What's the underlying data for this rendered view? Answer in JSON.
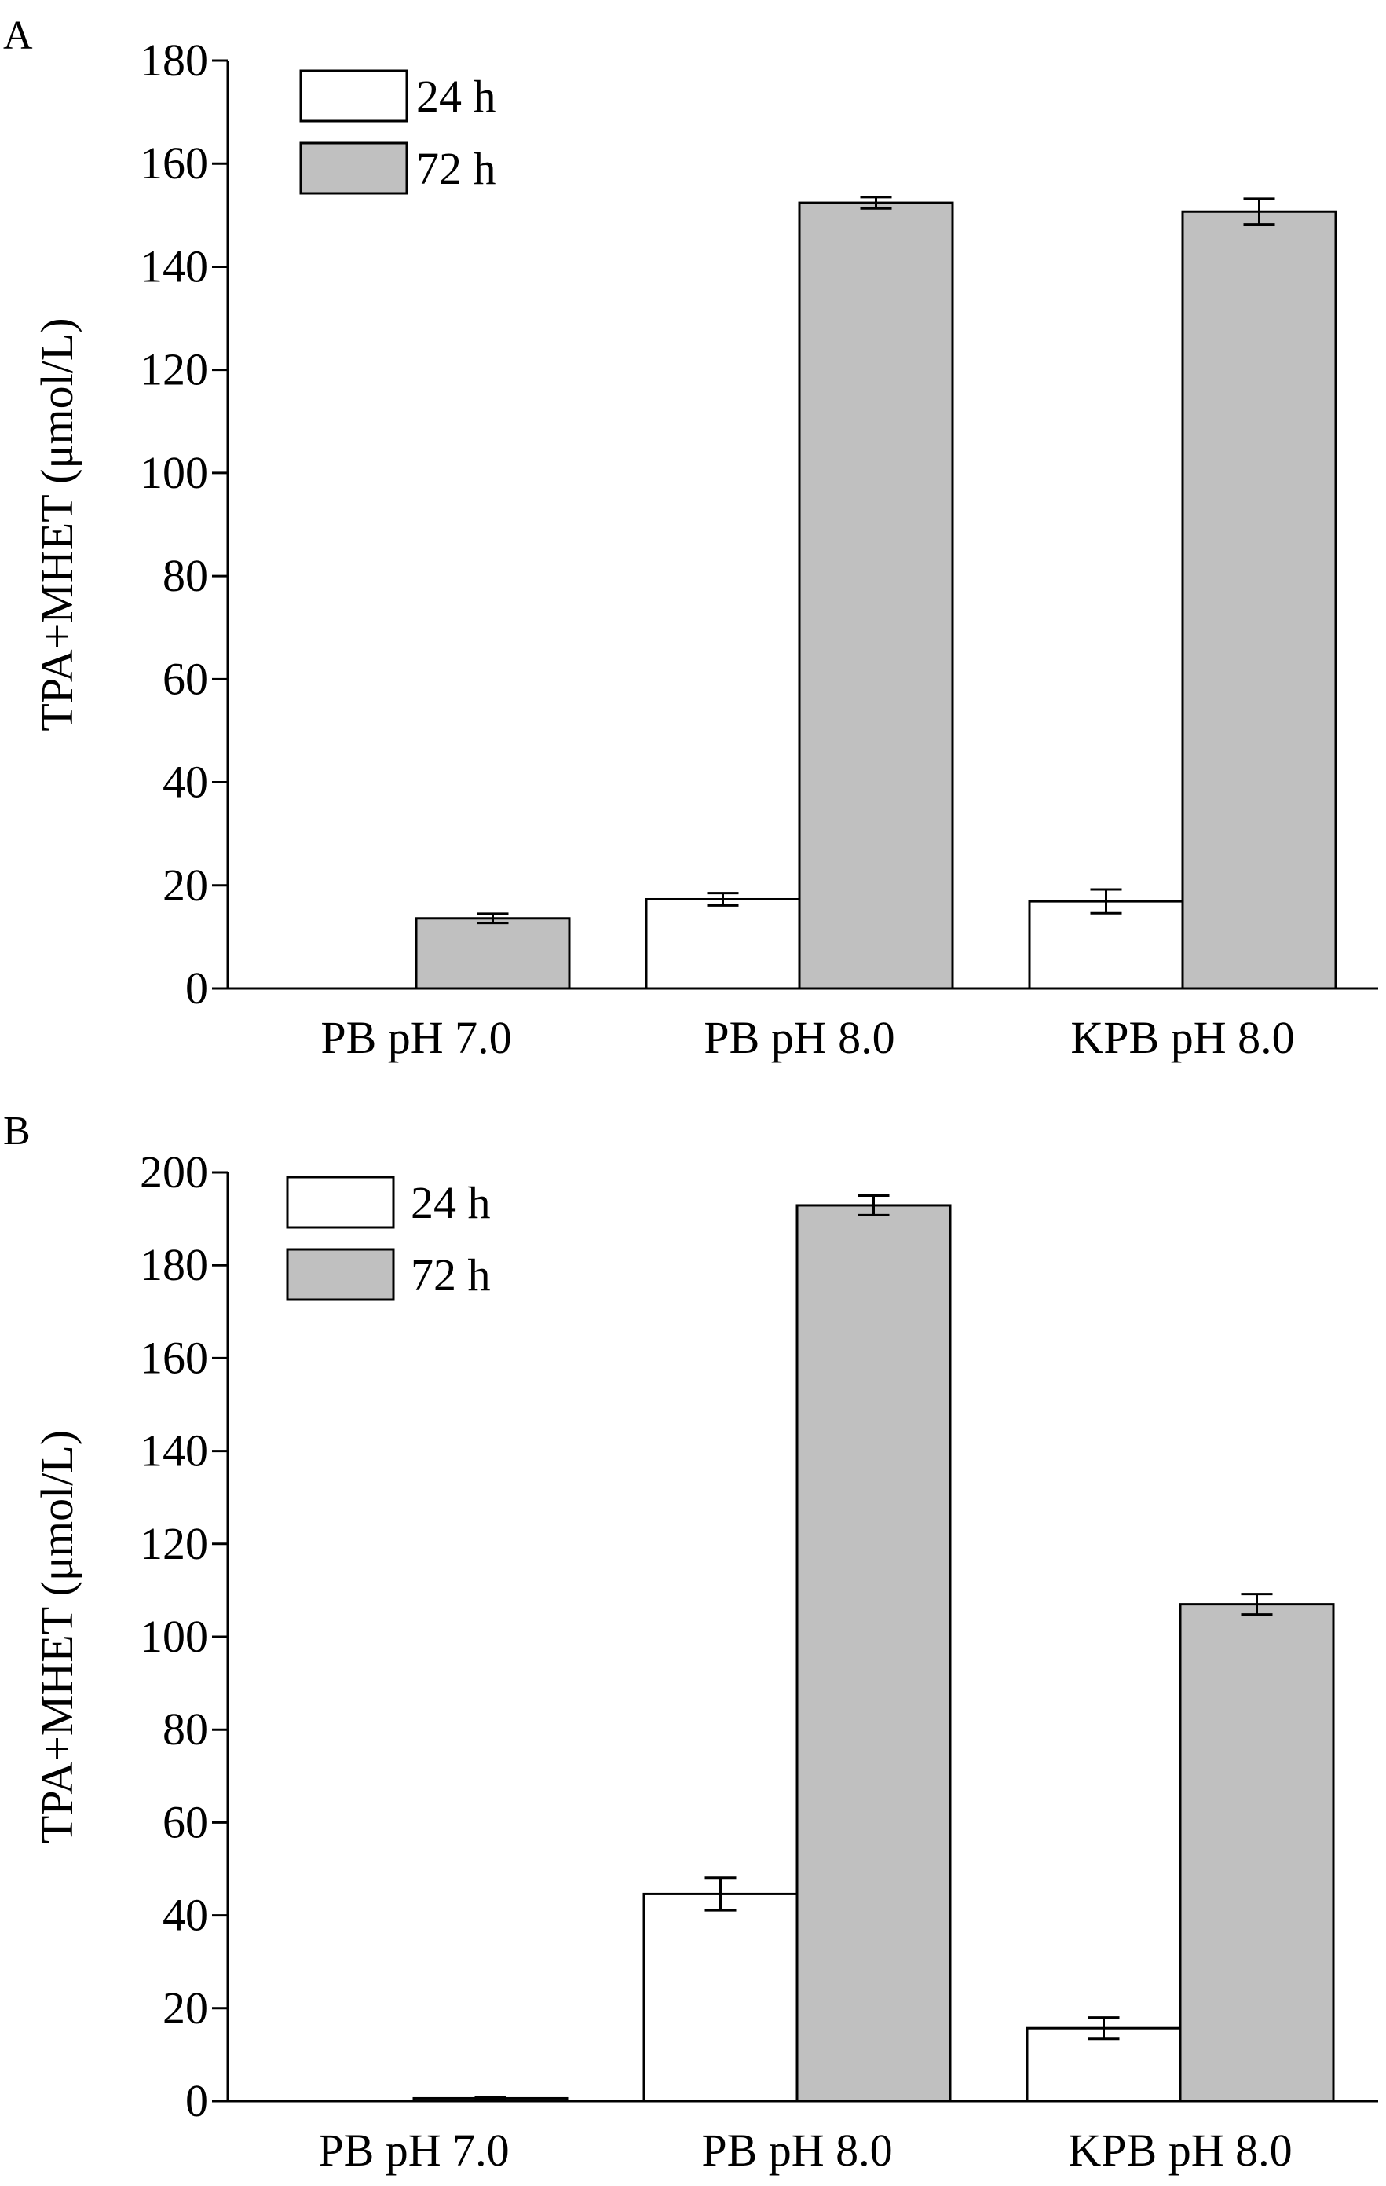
{
  "chart_data": [
    {
      "panel_label": "A",
      "type": "bar",
      "categories": [
        "PB pH 7.0",
        "PB pH 8.0",
        "KPB pH 8.0"
      ],
      "series": [
        {
          "name": "24 h",
          "values": [
            0,
            17.3,
            16.9
          ],
          "errors": [
            0,
            1.2,
            2.3
          ],
          "color": "#ffffff"
        },
        {
          "name": "72 h",
          "values": [
            13.6,
            152.4,
            150.7
          ],
          "errors": [
            0.9,
            1.1,
            2.5
          ],
          "color": "#c0c0c0"
        }
      ],
      "ylabel": "TPA+MHET (μmol/L)",
      "xlabel": "",
      "ylim": [
        0,
        180
      ],
      "yticks": [
        0,
        20,
        40,
        60,
        80,
        100,
        120,
        140,
        160,
        180
      ],
      "grid": false,
      "legend": "top-left"
    },
    {
      "panel_label": "B",
      "type": "bar",
      "categories": [
        "PB pH 7.0",
        "PB pH 8.0",
        "KPB pH 8.0"
      ],
      "series": [
        {
          "name": "24 h",
          "values": [
            0,
            44.6,
            15.7
          ],
          "errors": [
            0,
            3.5,
            2.3
          ],
          "color": "#ffffff"
        },
        {
          "name": "72 h",
          "values": [
            0.6,
            192.9,
            107.0
          ],
          "errors": [
            0.3,
            2.1,
            2.2
          ],
          "color": "#c0c0c0"
        }
      ],
      "ylabel": "TPA+MHET (μmol/L)",
      "xlabel": "",
      "ylim": [
        0,
        200
      ],
      "yticks": [
        0,
        20,
        40,
        60,
        80,
        100,
        120,
        140,
        160,
        180,
        200
      ],
      "grid": false,
      "legend": "top-left"
    }
  ]
}
